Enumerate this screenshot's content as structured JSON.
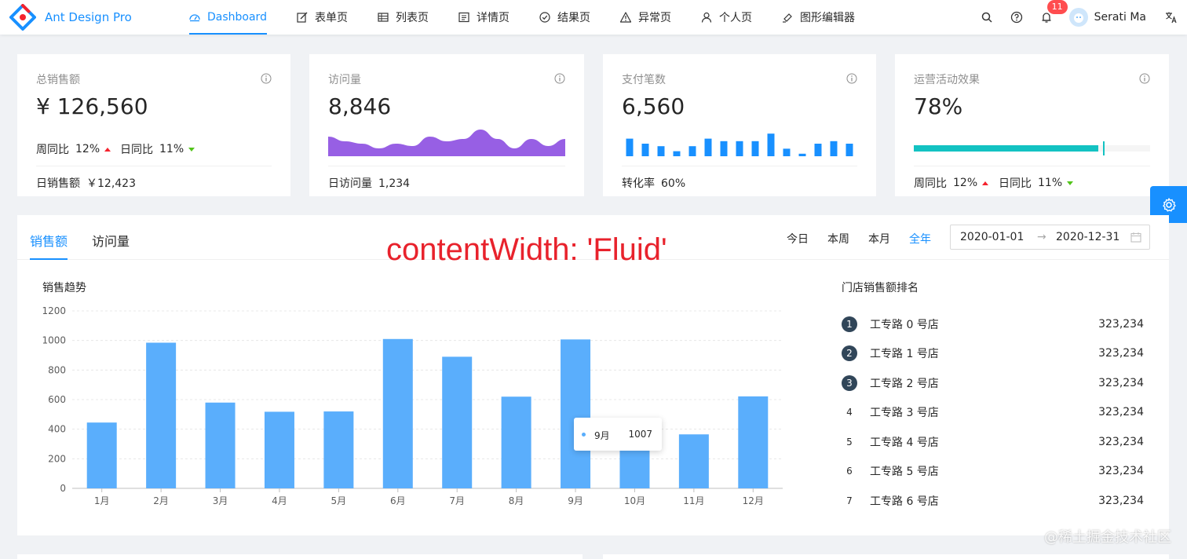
{
  "header": {
    "app_title": "Ant Design Pro",
    "menu": [
      {
        "label": "Dashboard",
        "icon": "dashboard-icon",
        "active": true
      },
      {
        "label": "表单页",
        "icon": "form-icon"
      },
      {
        "label": "列表页",
        "icon": "table-icon"
      },
      {
        "label": "详情页",
        "icon": "profile-icon"
      },
      {
        "label": "结果页",
        "icon": "check-circle-icon"
      },
      {
        "label": "异常页",
        "icon": "warning-icon"
      },
      {
        "label": "个人页",
        "icon": "user-icon"
      },
      {
        "label": "图形编辑器",
        "icon": "highlight-icon"
      }
    ],
    "notification_count": "11",
    "user_name": "Serati Ma"
  },
  "stats": {
    "sales": {
      "title": "总销售额",
      "value": "¥ 126,560",
      "week_label": "周同比",
      "week_value": "12%",
      "day_label": "日同比",
      "day_value": "11%",
      "footer_label": "日销售额",
      "footer_value": "￥12,423"
    },
    "visits": {
      "title": "访问量",
      "value": "8,846",
      "footer_label": "日访问量",
      "footer_value": "1,234"
    },
    "payments": {
      "title": "支付笔数",
      "value": "6,560",
      "footer_label": "转化率",
      "footer_value": "60%"
    },
    "operations": {
      "title": "运营活动效果",
      "value": "78%",
      "progress": 78,
      "week_label": "周同比",
      "week_value": "12%",
      "day_label": "日同比",
      "day_value": "11%"
    }
  },
  "sales_panel": {
    "tabs": [
      "销售额",
      "访问量"
    ],
    "ranges": [
      "今日",
      "本周",
      "本月",
      "全年"
    ],
    "active_range": "全年",
    "date_start": "2020-01-01",
    "date_end": "2020-12-31",
    "chart_title": "销售趋势",
    "rank_title": "门店销售额排名",
    "rank": [
      {
        "num": "1",
        "name": "工专路 0 号店",
        "value": "323,234"
      },
      {
        "num": "2",
        "name": "工专路 1 号店",
        "value": "323,234"
      },
      {
        "num": "3",
        "name": "工专路 2 号店",
        "value": "323,234"
      },
      {
        "num": "4",
        "name": "工专路 3 号店",
        "value": "323,234"
      },
      {
        "num": "5",
        "name": "工专路 4 号店",
        "value": "323,234"
      },
      {
        "num": "6",
        "name": "工专路 5 号店",
        "value": "323,234"
      },
      {
        "num": "7",
        "name": "工专路 6 号店",
        "value": "323,234"
      }
    ],
    "tooltip": {
      "name": "9月",
      "value": "1007"
    }
  },
  "caption": "contentWidth: 'Fluid'",
  "site_watermark": "@稀土掘金技术社区",
  "colors": {
    "primary": "#1890ff",
    "bar": "#5aaefc",
    "area": "#975fe4",
    "progress": "#13c2c2"
  },
  "chart_data": [
    {
      "type": "bar",
      "title": "销售趋势",
      "categories": [
        "1月",
        "2月",
        "3月",
        "4月",
        "5月",
        "6月",
        "7月",
        "8月",
        "9月",
        "10月",
        "11月",
        "12月"
      ],
      "values": [
        445,
        985,
        580,
        518,
        520,
        1010,
        890,
        620,
        1007,
        260,
        365,
        622
      ],
      "yticks": [
        0,
        200,
        400,
        600,
        800,
        1000,
        1200
      ],
      "ylim": [
        0,
        1200
      ]
    },
    {
      "type": "area",
      "values": [
        7,
        5,
        4,
        2,
        4,
        3,
        7,
        5,
        6,
        10,
        6,
        2,
        6,
        3,
        6
      ]
    },
    {
      "type": "bar",
      "values": [
        7,
        5,
        4,
        2,
        4,
        7,
        6,
        6,
        6,
        9,
        3,
        1,
        5,
        6,
        5
      ]
    }
  ]
}
